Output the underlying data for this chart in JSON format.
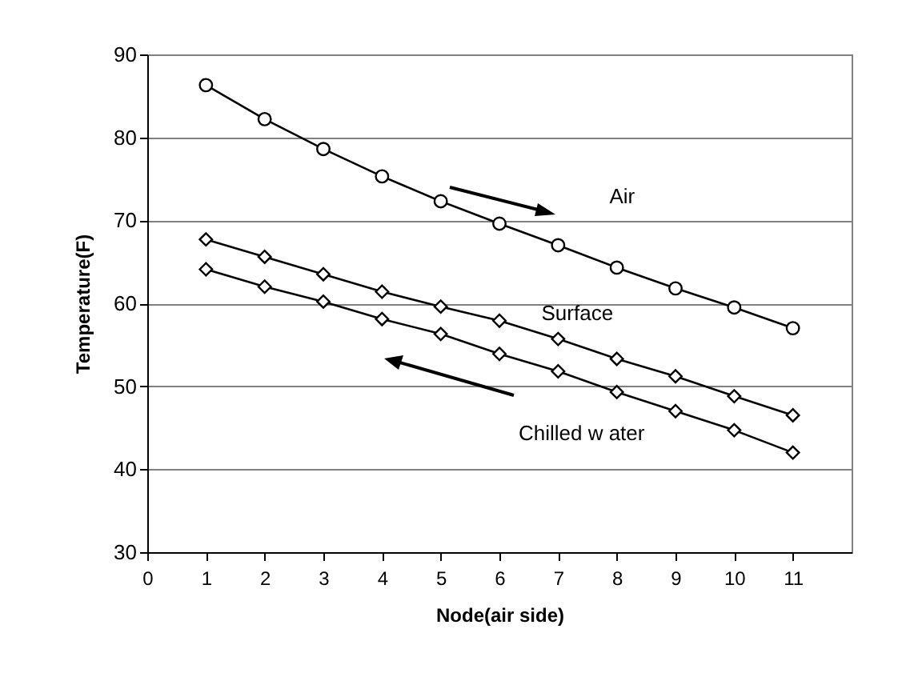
{
  "chart_data": {
    "type": "line",
    "xlabel": "Node(air side)",
    "ylabel": "Temperature(F)",
    "x": [
      1,
      2,
      3,
      4,
      5,
      6,
      7,
      8,
      9,
      10,
      11
    ],
    "series": [
      {
        "name": "Air",
        "color": "#000000",
        "marker": "circle",
        "values": [
          86.3,
          82.2,
          78.6,
          75.3,
          72.3,
          69.6,
          67.0,
          64.3,
          61.8,
          59.5,
          57.0
        ]
      },
      {
        "name": "Surface",
        "color": "#000000",
        "marker": "diamond",
        "values": [
          67.7,
          65.6,
          63.5,
          61.4,
          59.6,
          57.9,
          55.7,
          53.3,
          51.2,
          48.8,
          46.5
        ]
      },
      {
        "name": "Chilled w ater",
        "color": "#000000",
        "marker": "diamond",
        "values": [
          64.1,
          62.0,
          60.2,
          58.1,
          56.3,
          53.9,
          51.8,
          49.3,
          47.0,
          44.7,
          42.0
        ]
      }
    ],
    "xlim": [
      0,
      12
    ],
    "xticks": [
      0,
      1,
      2,
      3,
      4,
      5,
      6,
      7,
      8,
      9,
      10,
      11
    ],
    "ylim": [
      30,
      90
    ],
    "yticks": [
      30,
      40,
      50,
      60,
      70,
      80,
      90
    ],
    "grid": "y"
  }
}
